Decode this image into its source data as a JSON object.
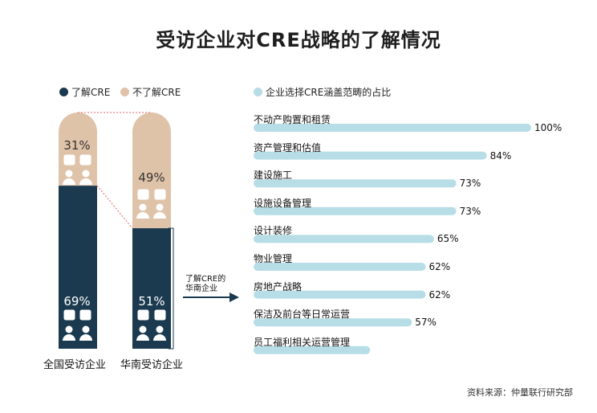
{
  "title": "受访企业对CRE战略的了解情况",
  "colors": {
    "understand": "#1b3a4f",
    "not_understand": "#dfc3a9",
    "bar": "#b7dde6"
  },
  "legend": {
    "understand": "了解CRE",
    "not_understand": "不了解CRE",
    "scope": "企业选择CRE涵盖范畴的占比"
  },
  "annotation": {
    "line1": "了解CRE的",
    "line2": "华南企业"
  },
  "source": "资料来源：仲量联行研究部",
  "chart_data": [
    {
      "type": "bar",
      "stacked": true,
      "categories": [
        "全国受访企业",
        "华南受访企业"
      ],
      "series": [
        {
          "name": "了解CRE",
          "values": [
            69,
            51
          ],
          "labels": [
            "69%",
            "51%"
          ]
        },
        {
          "name": "不了解CRE",
          "values": [
            31,
            49
          ],
          "labels": [
            "31%",
            "49%"
          ]
        }
      ],
      "ylim": [
        0,
        100
      ]
    },
    {
      "type": "bar",
      "orientation": "horizontal",
      "title": "企业选择CRE涵盖范畴的占比",
      "categories": [
        "不动产购置和租赁",
        "资产管理和估值",
        "建设施工",
        "设施设备管理",
        "设计装修",
        "物业管理",
        "房地产战略",
        "保洁及前台等日常运营",
        "员工福利相关运营管理"
      ],
      "values": [
        100,
        84,
        73,
        73,
        65,
        62,
        62,
        57,
        42
      ],
      "labels": [
        "100%",
        "84%",
        "73%",
        "73%",
        "65%",
        "62%",
        "62%",
        "57%",
        ""
      ],
      "xlim": [
        0,
        100
      ]
    }
  ]
}
